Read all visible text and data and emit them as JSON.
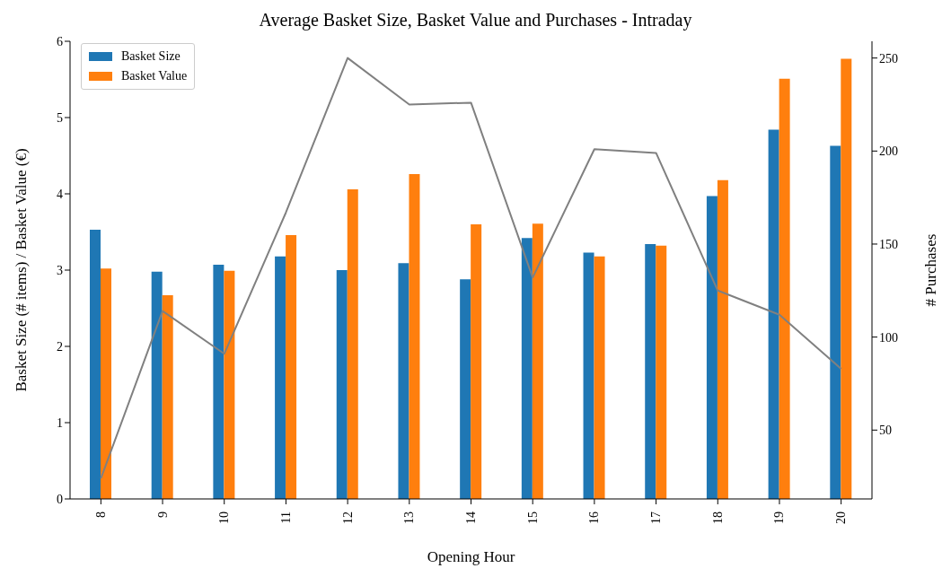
{
  "chart_data": {
    "type": "bar",
    "title": "Average Basket Size, Basket Value and Purchases - Intraday",
    "xlabel": "Opening Hour",
    "ylabel": "Basket Size (# items) / Basket Value (€)",
    "y2label": "# Purchases",
    "categories": [
      "8",
      "9",
      "10",
      "11",
      "12",
      "13",
      "14",
      "15",
      "16",
      "17",
      "18",
      "19",
      "20"
    ],
    "series": [
      {
        "name": "Basket Size",
        "color": "#1f77b4",
        "values": [
          3.53,
          2.98,
          3.07,
          3.18,
          3.0,
          3.09,
          2.88,
          3.42,
          3.23,
          3.34,
          3.97,
          4.84,
          4.63
        ]
      },
      {
        "name": "Basket Value",
        "color": "#ff7f0e",
        "values": [
          3.02,
          2.67,
          2.99,
          3.46,
          4.06,
          4.26,
          3.6,
          3.61,
          3.18,
          3.32,
          4.18,
          5.51,
          5.77
        ]
      },
      {
        "type": "line",
        "axis": "y2",
        "color": "#808080",
        "values": [
          24,
          114,
          91,
          167,
          250,
          225,
          226,
          132,
          201,
          199,
          125,
          112,
          83
        ]
      }
    ],
    "ylim": [
      0,
      6
    ],
    "yticks": [
      0,
      1,
      2,
      3,
      4,
      5,
      6
    ],
    "y2lim": [
      13,
      259
    ],
    "y2ticks": [
      50,
      100,
      150,
      200,
      250
    ],
    "legend": "top left",
    "grid": false
  }
}
